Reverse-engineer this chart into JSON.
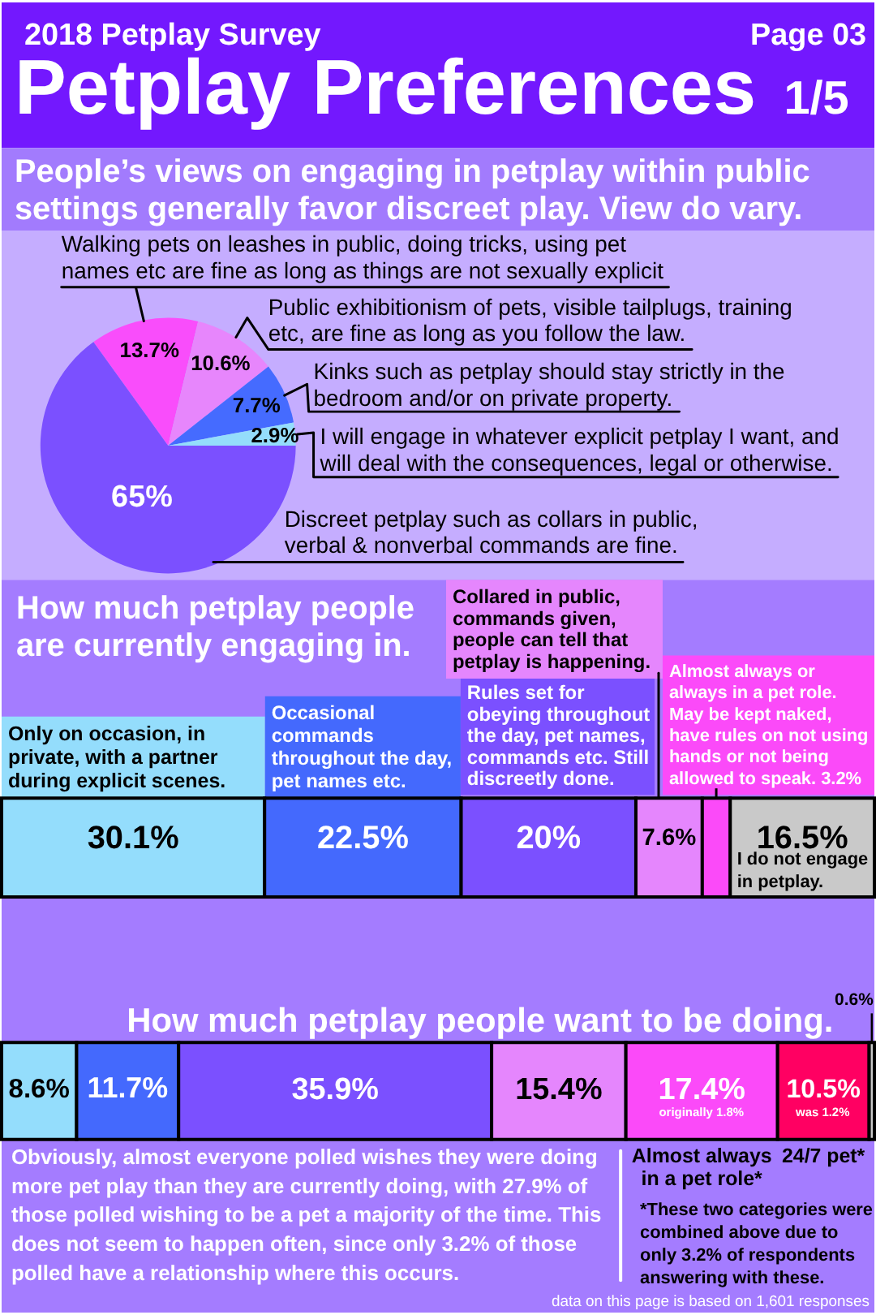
{
  "chart_data": [
    {
      "type": "pie",
      "title": "Petplay Preferences 1/5",
      "subtitle": "People’s views on engaging in petplay within public settings generally favor discreet play. View do vary.",
      "annotations": [
        "2018 Petplay Survey",
        "Page 03"
      ],
      "categories": [
        "Walking pets on leashes in public, doing tricks, using pet names etc are fine as long as things are not sexually explicit",
        "Public exhibitionism of pets, visible tailplugs, training etc, are fine as long as you follow the law.",
        "Kinks such as petplay should stay strictly in the bedroom and/or on private property.",
        "I will engage in whatever explicit petplay I want, and will deal with the consequences, legal or otherwise.",
        "Discreet petplay such as collars in public, verbal & nonverbal commands are fine."
      ],
      "values": [
        13.7,
        10.6,
        7.7,
        2.9,
        65
      ],
      "colors": [
        "#f94dfb",
        "#e786fc",
        "#456bff",
        "#94ddfb",
        "#7b50ff"
      ],
      "value_labels": [
        "13.7%",
        "10.6%",
        "7.7%",
        "2.9%",
        "65%"
      ]
    },
    {
      "type": "bar",
      "orientation": "horizontal",
      "stacked": true,
      "title": "How much petplay people are currently engaging in.",
      "categories": [
        null
      ],
      "tick_labels": false,
      "series": [
        {
          "name": "Only on occasion, in private, with a partner during explicit scenes.",
          "color": "#94ddfc",
          "values": [
            30.1
          ],
          "value_labels": [
            "30.1%"
          ]
        },
        {
          "name": "Occasional commands throughout the day, pet names etc.",
          "color": "#4469fd",
          "values": [
            22.5
          ],
          "value_labels": [
            "22.5%"
          ]
        },
        {
          "name": "Rules set for obeying throughout the day, pet names, commands etc. Still discreetly done.",
          "color": "#7b50ff",
          "values": [
            20
          ],
          "value_labels": [
            "20%"
          ]
        },
        {
          "name": "Collared in public, commands given, people can tell that petplay is happening.",
          "color": "#e586fd",
          "values": [
            7.6
          ],
          "value_labels": [
            "7.6%"
          ]
        },
        {
          "name": "Almost always or always in a pet role. May be kept naked, have rules on not using hands or not being allowed to speak. 3.2%",
          "color": "#fb4af9",
          "values": [
            3.2
          ]
        },
        {
          "name": "I do not engage in petplay.",
          "color": "#c9c9c9",
          "values": [
            16.5
          ],
          "value_labels": [
            "16.5%"
          ]
        }
      ]
    },
    {
      "type": "bar",
      "orientation": "horizontal",
      "stacked": true,
      "title": "How much petplay people want to be doing.",
      "categories": [
        null
      ],
      "tick_labels": false,
      "series": [
        {
          "color": "#94ddfc",
          "values": [
            8.6
          ],
          "value_labels": [
            "8.6%"
          ]
        },
        {
          "color": "#4469fd",
          "values": [
            11.7
          ],
          "value_labels": [
            "11.7%"
          ]
        },
        {
          "color": "#7b50ff",
          "values": [
            35.9
          ],
          "value_labels": [
            "35.9%"
          ]
        },
        {
          "color": "#e586fd",
          "values": [
            15.4
          ],
          "value_labels": [
            "15.4%"
          ]
        },
        {
          "name": "Almost always in a pet role*",
          "color": "#fb4af9",
          "values": [
            17.4
          ],
          "value_labels": [
            "17.4%"
          ]
        },
        {
          "name": "24/7 pet*",
          "color": "#ff0062",
          "values": [
            10.5
          ],
          "value_labels": [
            "10.5%"
          ]
        },
        {
          "color": "#c9c9c9",
          "values": [
            0.6
          ],
          "value_labels": [
            "0.6%"
          ]
        }
      ],
      "annotations": [
        "originally 1.8%",
        "was 1.2%",
        "Obviously, almost everyone polled wishes they were doing more pet play than they are currently doing, with 27.9% of those polled wishing to be a pet a majority of the time. This does not seem to happen often, since only 3.2% of those polled have a relationship where this occurs.",
        "*These two categories were combined above due to only 3.2% of respondents answering with these.",
        "data on this page is based on 1,601 responses"
      ]
    }
  ]
}
